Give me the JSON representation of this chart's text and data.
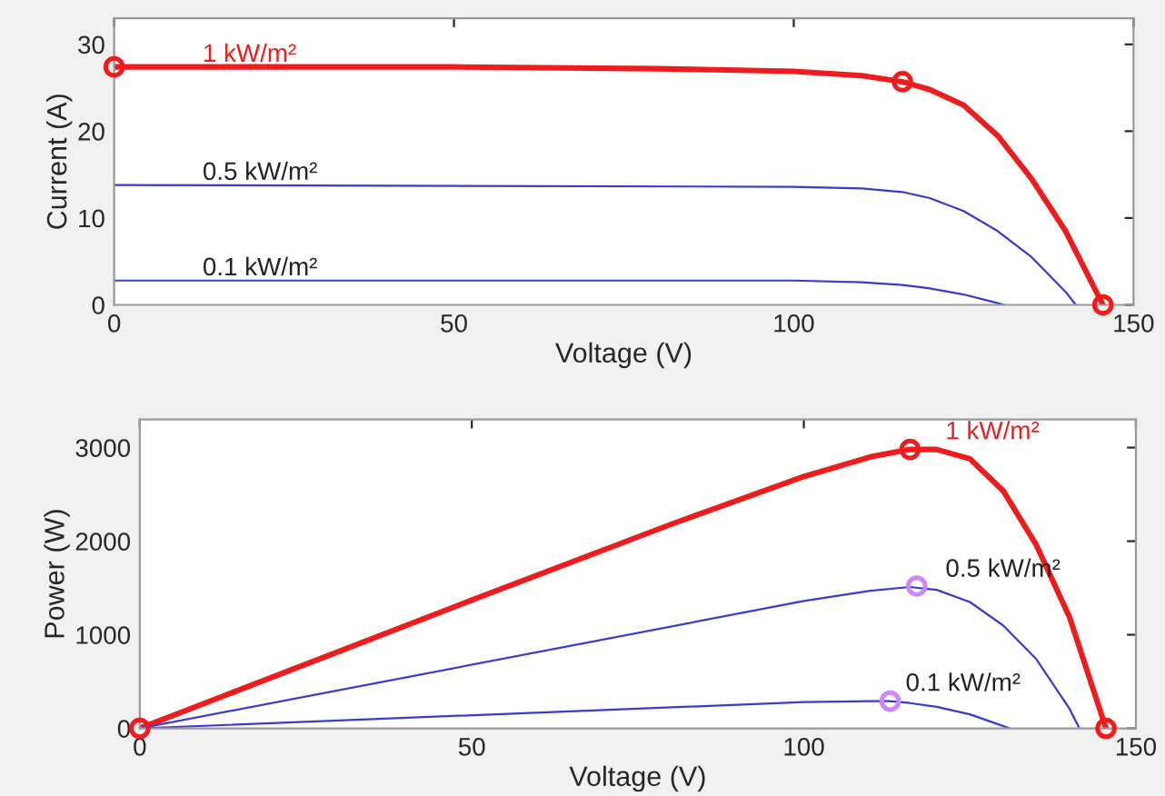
{
  "chart_data": [
    {
      "type": "line",
      "xlabel": "Voltage (V)",
      "ylabel": "Current (A)",
      "xlim": [
        0,
        150
      ],
      "ylim": [
        0,
        33
      ],
      "xticks": [
        0,
        50,
        100,
        150
      ],
      "yticks": [
        0,
        10,
        20,
        30
      ],
      "grid": false,
      "legend": false,
      "series": [
        {
          "name": "1 kW/m²",
          "color": "#ee1c1c",
          "x": [
            0,
            50,
            80,
            100,
            110,
            116,
            120,
            125,
            130,
            135,
            140,
            145.5
          ],
          "values": [
            27.4,
            27.4,
            27.2,
            26.9,
            26.4,
            25.7,
            24.8,
            23,
            19.5,
            14.5,
            8.5,
            0
          ]
        },
        {
          "name": "0.5 kW/m²",
          "color": "#3a3acd",
          "x": [
            0,
            100,
            110,
            116,
            120,
            125,
            130,
            135,
            140,
            141.5
          ],
          "values": [
            13.8,
            13.6,
            13.4,
            13.0,
            12.3,
            10.8,
            8.5,
            5.5,
            1.5,
            0
          ]
        },
        {
          "name": "0.1 kW/m²",
          "color": "#3a3acd",
          "x": [
            0,
            100,
            110,
            116,
            120,
            125,
            129,
            131
          ],
          "values": [
            2.8,
            2.8,
            2.6,
            2.3,
            1.9,
            1.2,
            0.4,
            0
          ]
        },
        {
          "type": "scatter",
          "marker": "circle",
          "color": "#ee1c1c",
          "x": [
            0,
            116,
            145.5
          ],
          "values": [
            27.4,
            25.7,
            0
          ]
        }
      ]
    },
    {
      "type": "line",
      "xlabel": "Voltage (V)",
      "ylabel": "Power (W)",
      "xlim": [
        0,
        150
      ],
      "ylim": [
        0,
        3300
      ],
      "xticks": [
        0,
        50,
        100,
        150
      ],
      "yticks": [
        0,
        1000,
        2000,
        3000
      ],
      "grid": false,
      "legend": false,
      "series": [
        {
          "name": "1 kW/m²",
          "color": "#ee1c1c",
          "x": [
            0,
            50,
            80,
            100,
            110,
            116,
            120,
            125,
            130,
            135,
            140,
            145.5
          ],
          "values": [
            0,
            1370,
            2180,
            2690,
            2900,
            2980,
            2980,
            2880,
            2540,
            1960,
            1190,
            0
          ]
        },
        {
          "name": "0.5 kW/m²",
          "color": "#3a3acd",
          "x": [
            0,
            100,
            110,
            116,
            120,
            125,
            130,
            135,
            140,
            141.5
          ],
          "values": [
            0,
            1360,
            1470,
            1510,
            1480,
            1350,
            1100,
            740,
            210,
            0
          ]
        },
        {
          "name": "0.1 kW/m²",
          "color": "#3a3acd",
          "x": [
            0,
            100,
            110,
            113,
            116,
            120,
            125,
            129,
            131
          ],
          "values": [
            0,
            280,
            290,
            290,
            270,
            230,
            150,
            50,
            0
          ]
        },
        {
          "type": "scatter",
          "marker": "circle",
          "color": "#ee1c1c",
          "x": [
            0,
            116,
            145.5
          ],
          "values": [
            0,
            2980,
            0
          ]
        },
        {
          "type": "scatter",
          "marker": "circle",
          "color": "#cc88ff",
          "x": [
            117,
            113
          ],
          "values": [
            1520,
            290
          ]
        }
      ]
    }
  ]
}
